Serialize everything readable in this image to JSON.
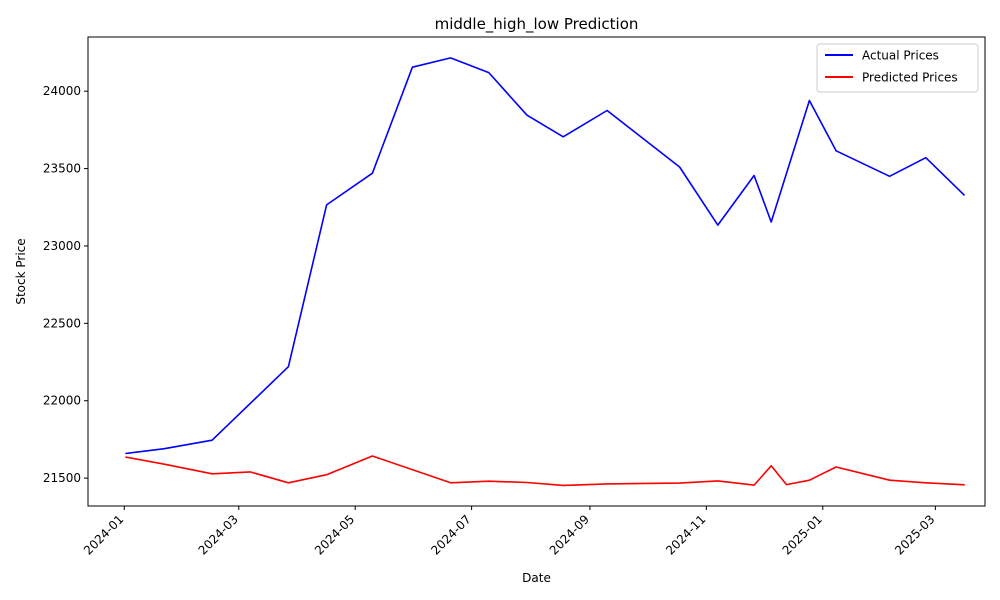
{
  "chart_data": {
    "type": "line",
    "title": "middle_high_low Prediction",
    "xlabel": "Date",
    "ylabel": "Stock Price",
    "x_range": [
      "2023-12-13",
      "2025-03-27"
    ],
    "ylim": [
      21320,
      24350
    ],
    "grid": false,
    "legend_position": "top-right",
    "x_ticks": [
      {
        "date": "2024-01-01",
        "label": "2024-01"
      },
      {
        "date": "2024-03-01",
        "label": "2024-03"
      },
      {
        "date": "2024-05-01",
        "label": "2024-05"
      },
      {
        "date": "2024-07-01",
        "label": "2024-07"
      },
      {
        "date": "2024-09-01",
        "label": "2024-09"
      },
      {
        "date": "2024-11-01",
        "label": "2024-11"
      },
      {
        "date": "2025-01-01",
        "label": "2025-01"
      },
      {
        "date": "2025-03-01",
        "label": "2025-03"
      }
    ],
    "y_ticks": [
      {
        "value": 21500,
        "label": "21500"
      },
      {
        "value": 22000,
        "label": "22000"
      },
      {
        "value": 22500,
        "label": "22500"
      },
      {
        "value": 23000,
        "label": "23000"
      },
      {
        "value": 23500,
        "label": "23500"
      },
      {
        "value": 24000,
        "label": "24000"
      }
    ],
    "series": [
      {
        "name": "Actual Prices",
        "color": "#0000ff",
        "points": [
          {
            "x": "2024-01-02",
            "y": 21660
          },
          {
            "x": "2024-01-22",
            "y": 21690
          },
          {
            "x": "2024-02-16",
            "y": 21745
          },
          {
            "x": "2024-03-27",
            "y": 22220
          },
          {
            "x": "2024-04-16",
            "y": 23265
          },
          {
            "x": "2024-05-10",
            "y": 23470
          },
          {
            "x": "2024-05-31",
            "y": 24155
          },
          {
            "x": "2024-06-20",
            "y": 24215
          },
          {
            "x": "2024-07-10",
            "y": 24120
          },
          {
            "x": "2024-07-30",
            "y": 23845
          },
          {
            "x": "2024-08-18",
            "y": 23705
          },
          {
            "x": "2024-09-10",
            "y": 23875
          },
          {
            "x": "2024-10-18",
            "y": 23510
          },
          {
            "x": "2024-11-07",
            "y": 23135
          },
          {
            "x": "2024-11-26",
            "y": 23455
          },
          {
            "x": "2024-12-05",
            "y": 23155
          },
          {
            "x": "2024-12-25",
            "y": 23940
          },
          {
            "x": "2025-01-08",
            "y": 23615
          },
          {
            "x": "2025-02-05",
            "y": 23450
          },
          {
            "x": "2025-02-24",
            "y": 23570
          },
          {
            "x": "2025-03-16",
            "y": 23330
          }
        ]
      },
      {
        "name": "Predicted Prices",
        "color": "#ff0000",
        "points": [
          {
            "x": "2024-01-02",
            "y": 21635
          },
          {
            "x": "2024-01-22",
            "y": 21590
          },
          {
            "x": "2024-02-16",
            "y": 21528
          },
          {
            "x": "2024-03-07",
            "y": 21540
          },
          {
            "x": "2024-03-27",
            "y": 21470
          },
          {
            "x": "2024-04-16",
            "y": 21522
          },
          {
            "x": "2024-05-10",
            "y": 21643
          },
          {
            "x": "2024-06-20",
            "y": 21470
          },
          {
            "x": "2024-07-10",
            "y": 21480
          },
          {
            "x": "2024-07-30",
            "y": 21472
          },
          {
            "x": "2024-08-18",
            "y": 21453
          },
          {
            "x": "2024-09-10",
            "y": 21463
          },
          {
            "x": "2024-10-18",
            "y": 21468
          },
          {
            "x": "2024-11-07",
            "y": 21482
          },
          {
            "x": "2024-11-26",
            "y": 21455
          },
          {
            "x": "2024-12-05",
            "y": 21580
          },
          {
            "x": "2024-12-13",
            "y": 21458
          },
          {
            "x": "2024-12-25",
            "y": 21487
          },
          {
            "x": "2025-01-08",
            "y": 21572
          },
          {
            "x": "2025-02-05",
            "y": 21487
          },
          {
            "x": "2025-02-24",
            "y": 21470
          },
          {
            "x": "2025-03-16",
            "y": 21457
          }
        ]
      }
    ]
  }
}
